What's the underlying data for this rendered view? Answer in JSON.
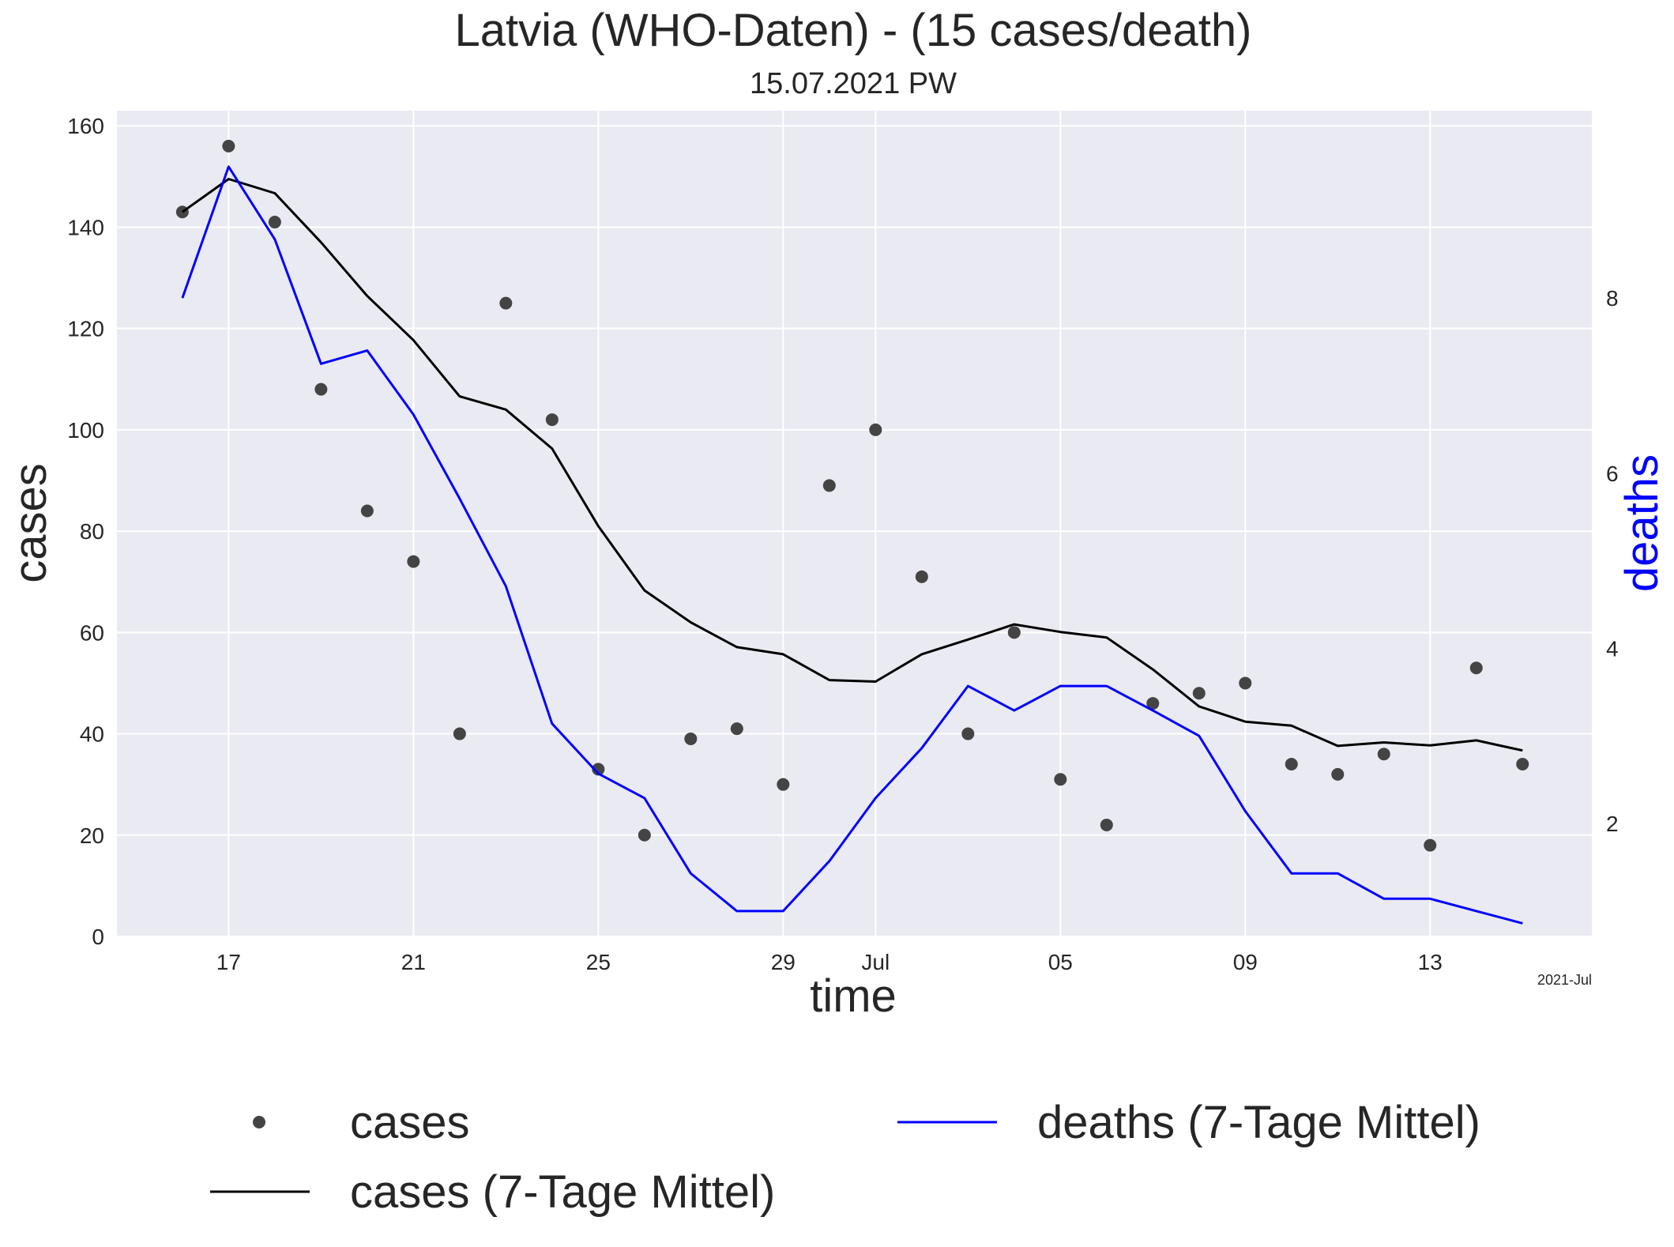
{
  "chart_data": {
    "type": "line",
    "title": "Latvia (WHO-Daten) - (15 cases/death)",
    "subtitle": "15.07.2021 PW",
    "xlabel": "time",
    "ylabel": "cases",
    "y2label": "deaths",
    "x_offset_label": "2021-Jul",
    "x": [
      "2021-06-16",
      "2021-06-17",
      "2021-06-18",
      "2021-06-19",
      "2021-06-20",
      "2021-06-21",
      "2021-06-22",
      "2021-06-23",
      "2021-06-24",
      "2021-06-25",
      "2021-06-26",
      "2021-06-27",
      "2021-06-28",
      "2021-06-29",
      "2021-06-30",
      "2021-07-01",
      "2021-07-02",
      "2021-07-03",
      "2021-07-04",
      "2021-07-05",
      "2021-07-06",
      "2021-07-07",
      "2021-07-08",
      "2021-07-09",
      "2021-07-10",
      "2021-07-11",
      "2021-07-12",
      "2021-07-13",
      "2021-07-14",
      "2021-07-15"
    ],
    "xlim": [
      "2021-06-14T14:00",
      "2021-07-16T12:00"
    ],
    "x_ticks": [
      {
        "date": "2021-06-17",
        "label": "17"
      },
      {
        "date": "2021-06-21",
        "label": "21"
      },
      {
        "date": "2021-06-25",
        "label": "25"
      },
      {
        "date": "2021-06-29",
        "label": "29"
      },
      {
        "date": "2021-07-01",
        "label": "Jul"
      },
      {
        "date": "2021-07-05",
        "label": "05"
      },
      {
        "date": "2021-07-09",
        "label": "09"
      },
      {
        "date": "2021-07-13",
        "label": "13"
      }
    ],
    "ylim": [
      0,
      163
    ],
    "y_ticks": [
      0,
      20,
      40,
      60,
      80,
      100,
      120,
      140,
      160
    ],
    "y2lim": [
      0.71,
      10.14
    ],
    "y2_ticks": [
      2,
      4,
      6,
      8
    ],
    "grid": true,
    "legend_position": "bottom",
    "series": [
      {
        "name": "cases",
        "axis": "left",
        "style": "scatter",
        "color": "#444444",
        "values": [
          143,
          156,
          141,
          108,
          84,
          74,
          40,
          125,
          102,
          33,
          20,
          39,
          41,
          30,
          89,
          100,
          71,
          40,
          60,
          31,
          22,
          46,
          48,
          50,
          34,
          32,
          36,
          18,
          53,
          34
        ]
      },
      {
        "name": "cases (7-Tage Mittel)",
        "axis": "left",
        "style": "line",
        "color": "#000000",
        "values": [
          143,
          149.5,
          146.7,
          137,
          126.4,
          117.7,
          106.6,
          104,
          96.3,
          81,
          68.3,
          62,
          57.1,
          55.7,
          50.6,
          50.3,
          55.7,
          58.6,
          61.6,
          60.1,
          59,
          52.7,
          45.4,
          42.4,
          41.6,
          37.6,
          38.3,
          37.7,
          38.7,
          36.7
        ]
      },
      {
        "name": "deaths (7-Tage Mittel)",
        "axis": "right",
        "style": "line",
        "color": "#0000ff",
        "values": [
          8,
          9.5,
          8.67,
          7.25,
          7.4,
          6.67,
          5.71,
          4.71,
          3.14,
          2.57,
          2.29,
          1.43,
          1,
          1,
          1.57,
          2.29,
          2.86,
          3.57,
          3.29,
          3.57,
          3.57,
          3.29,
          3,
          2.14,
          1.43,
          1.43,
          1.14,
          1.14,
          1,
          0.86
        ]
      }
    ]
  }
}
